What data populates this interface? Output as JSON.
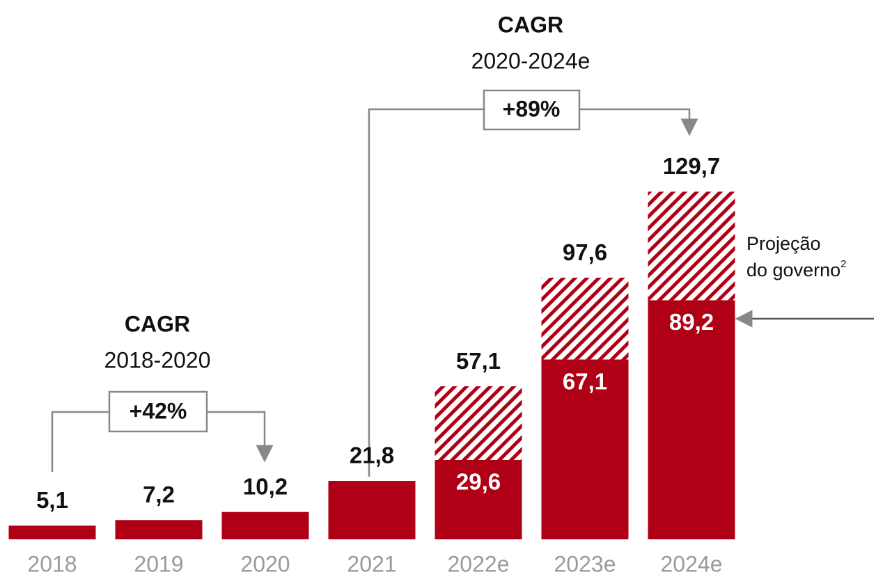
{
  "chart_data": {
    "type": "stacked_bar",
    "categories": [
      "2018",
      "2019",
      "2020",
      "2021",
      "2022e",
      "2023e",
      "2024e"
    ],
    "series": [
      {
        "name": null,
        "color": "#b00016",
        "values": [
          5.1,
          7.2,
          10.2,
          21.8,
          29.6,
          67.1,
          89.2
        ],
        "value_labels": [
          null,
          null,
          null,
          null,
          "29,6",
          "67,1",
          "89,2"
        ]
      },
      {
        "name": null,
        "color": "#b00016",
        "pattern": "hatch",
        "values": [
          null,
          null,
          null,
          null,
          27.5,
          30.5,
          40.5
        ]
      }
    ],
    "totals": [
      5.1,
      7.2,
      10.2,
      21.8,
      57.1,
      97.6,
      129.7
    ],
    "total_labels": [
      "5,1",
      "7,2",
      "10,2",
      "21,8",
      "57,1",
      "97,6",
      "129,7"
    ],
    "ylim": [
      0,
      135
    ],
    "annotations": [
      {
        "title": "CAGR",
        "period": "2018-2020",
        "value": "+42%"
      },
      {
        "title": "CAGR",
        "period": "2020-2024e",
        "value": "+89%"
      },
      {
        "line1": "Projeção",
        "line2": "do governo",
        "sup": "2"
      }
    ]
  }
}
